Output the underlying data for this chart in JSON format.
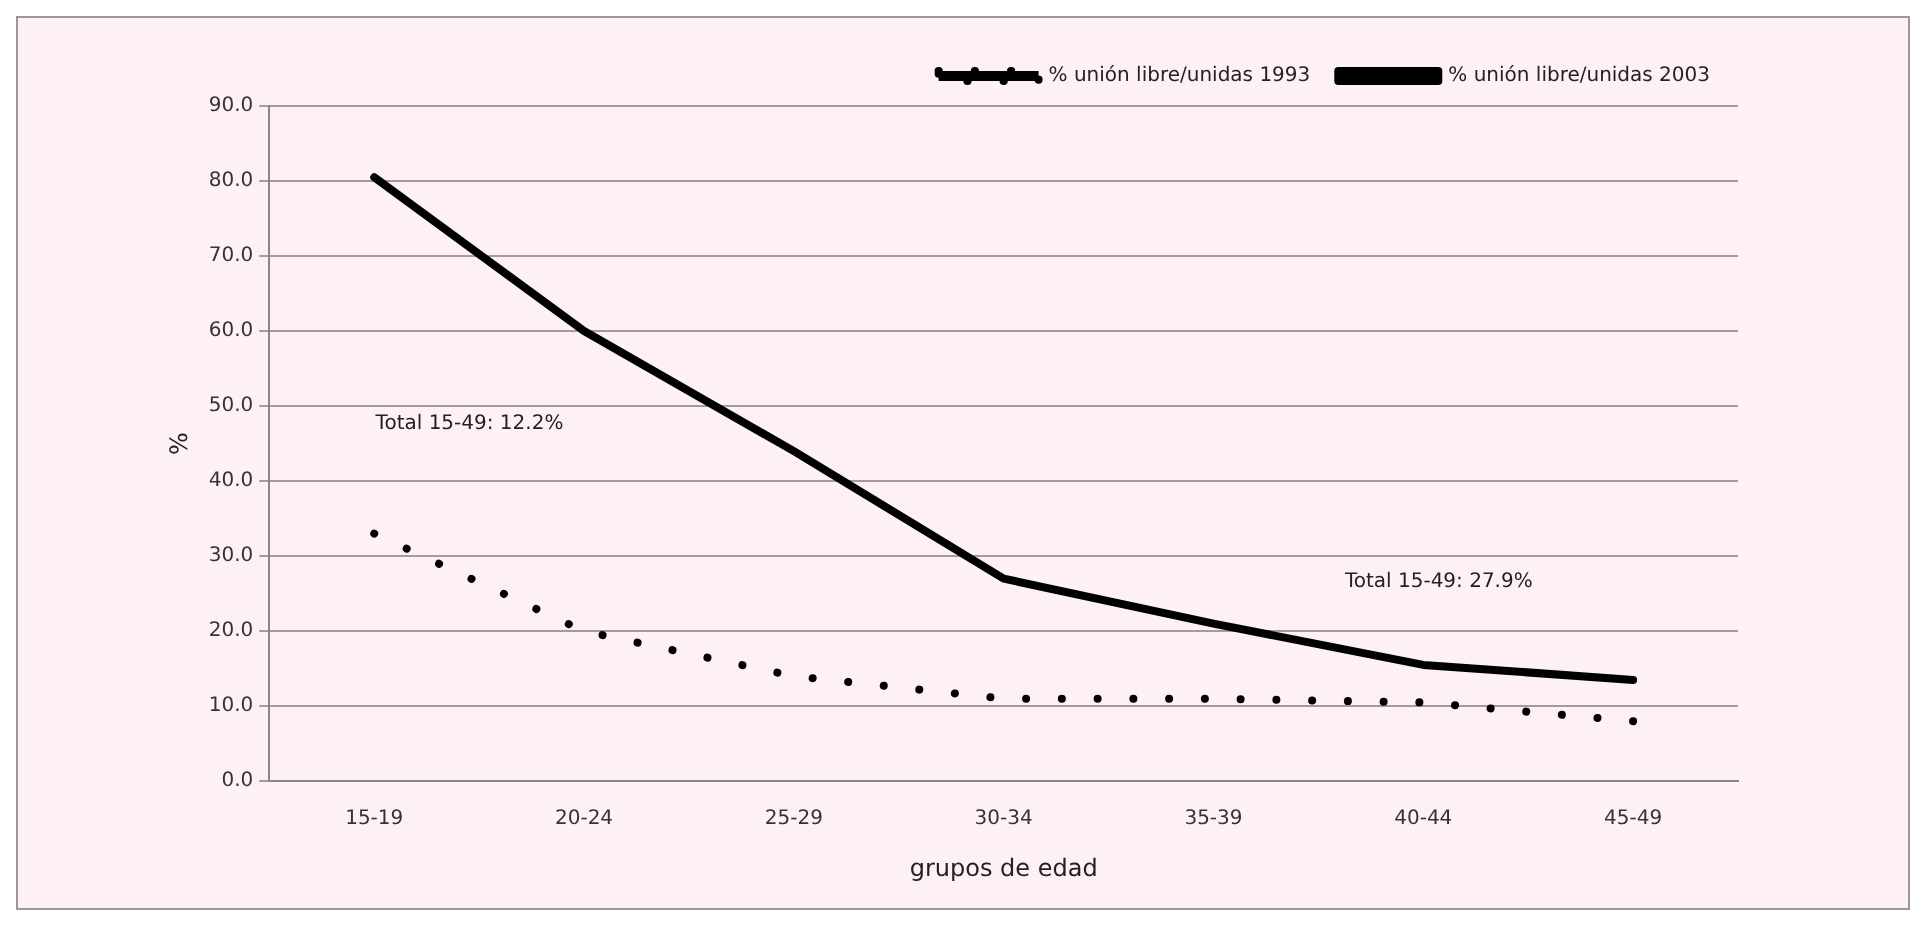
{
  "chart_data": {
    "type": "line",
    "xlabel": "grupos de edad",
    "ylabel": "%",
    "categories": [
      "15-19",
      "20-24",
      "25-29",
      "30-34",
      "35-39",
      "40-44",
      "45-49"
    ],
    "series": [
      {
        "name": "% unión libre/unidas 1993",
        "color": "#000000",
        "line_style": "dotted",
        "values": [
          33,
          20,
          14,
          11,
          11,
          10.5,
          8
        ]
      },
      {
        "name": "% unión libre/unidas 2003",
        "color": "#000000",
        "line_style": "solid",
        "values": [
          80.5,
          60,
          44,
          27,
          21,
          15.5,
          13.5
        ]
      }
    ],
    "ylim": [
      0,
      90
    ],
    "yticks": [
      {
        "value": 0,
        "label": "0.0"
      },
      {
        "value": 10,
        "label": "10.0"
      },
      {
        "value": 20,
        "label": "20.0"
      },
      {
        "value": 30,
        "label": "30.0"
      },
      {
        "value": 40,
        "label": "40.0"
      },
      {
        "value": 50,
        "label": "50.0"
      },
      {
        "value": 60,
        "label": "60.0"
      },
      {
        "value": 70,
        "label": "70.0"
      },
      {
        "value": 80,
        "label": "80.0"
      },
      {
        "value": 90,
        "label": "90.0"
      }
    ],
    "grid": "y",
    "legend": "top right",
    "marker": "none",
    "annotations": [
      "Total 15-49: 12.2%",
      "Total 15-49: 27.9%"
    ]
  }
}
